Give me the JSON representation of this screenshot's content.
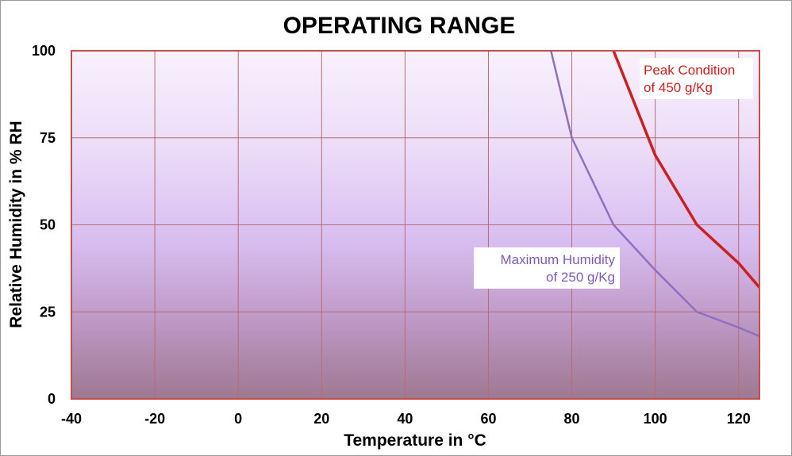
{
  "chart_data": {
    "type": "line",
    "title": "OPERATING RANGE",
    "xlabel": "Temperature in °C",
    "ylabel": "Relative Humidity in % RH",
    "xlim": [
      -40,
      125
    ],
    "ylim": [
      0,
      100
    ],
    "x_ticks": [
      -40,
      -20,
      0,
      20,
      40,
      60,
      80,
      100,
      120
    ],
    "y_ticks": [
      0,
      25,
      50,
      75,
      100
    ],
    "grid": true,
    "legend": "none",
    "series": [
      {
        "label": [
          "Maximum Humidity",
          "of 250 g/Kg"
        ],
        "color": "#8e6fc1",
        "points": [
          {
            "x": 75,
            "y": 100
          },
          {
            "x": 80,
            "y": 75
          },
          {
            "x": 90,
            "y": 50
          },
          {
            "x": 100,
            "y": 37
          },
          {
            "x": 110,
            "y": 25
          },
          {
            "x": 120,
            "y": 20.5
          },
          {
            "x": 125,
            "y": 18
          }
        ]
      },
      {
        "label": [
          "Peak Condition",
          "of 450 g/Kg"
        ],
        "color": "#cc1f1f",
        "points": [
          {
            "x": 90,
            "y": 100
          },
          {
            "x": 100,
            "y": 70
          },
          {
            "x": 110,
            "y": 50
          },
          {
            "x": 120,
            "y": 39
          },
          {
            "x": 125,
            "y": 32
          }
        ]
      }
    ],
    "colors": {
      "grid": "#b96a73",
      "plot_border": "#c0504d",
      "background_top": "#f7effc",
      "background_mid": "#dcc3f3",
      "background_bottom": "#a07893"
    }
  }
}
